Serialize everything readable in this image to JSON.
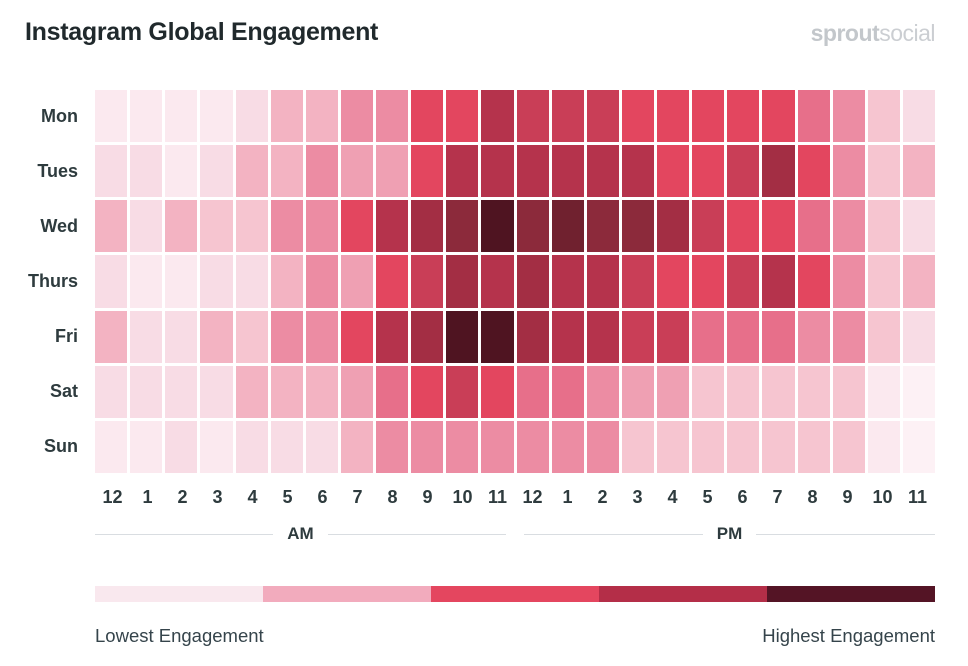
{
  "header": {
    "title": "Instagram Global Engagement",
    "logo_bold": "sprout",
    "logo_light": "social"
  },
  "chart_data": {
    "type": "heatmap",
    "title": "Instagram Global Engagement",
    "rows": [
      "Mon",
      "Tues",
      "Wed",
      "Thurs",
      "Fri",
      "Sat",
      "Sun"
    ],
    "columns": [
      "12",
      "1",
      "2",
      "3",
      "4",
      "5",
      "6",
      "7",
      "8",
      "9",
      "10",
      "11",
      "12",
      "1",
      "2",
      "3",
      "4",
      "5",
      "6",
      "7",
      "8",
      "9",
      "10",
      "11"
    ],
    "column_groups": [
      {
        "label": "AM",
        "span": 12
      },
      {
        "label": "PM",
        "span": 12
      }
    ],
    "value_meaning": "engagement level index into palette: 0 = lowest engagement, 14 = highest engagement",
    "palette": [
      "#fdf1f5",
      "#fbe9ef",
      "#f8dce5",
      "#f6c5d0",
      "#f3b3c2",
      "#efa0b3",
      "#ec8ca3",
      "#e76f8a",
      "#e3465f",
      "#c93e57",
      "#b5334c",
      "#a32e44",
      "#8c2a3b",
      "#70212f",
      "#4f1421"
    ],
    "cells": [
      [
        1,
        1,
        1,
        1,
        2,
        4,
        4,
        6,
        6,
        8,
        8,
        10,
        9,
        9,
        9,
        8,
        8,
        8,
        8,
        8,
        7,
        6,
        3,
        2
      ],
      [
        2,
        2,
        1,
        2,
        4,
        4,
        6,
        5,
        5,
        8,
        10,
        10,
        10,
        10,
        10,
        10,
        8,
        8,
        9,
        11,
        8,
        6,
        3,
        4
      ],
      [
        4,
        2,
        4,
        3,
        3,
        6,
        6,
        8,
        10,
        11,
        12,
        14,
        12,
        13,
        12,
        12,
        11,
        9,
        8,
        8,
        7,
        6,
        3,
        2
      ],
      [
        2,
        1,
        1,
        2,
        2,
        4,
        6,
        5,
        8,
        9,
        11,
        10,
        11,
        10,
        10,
        9,
        8,
        8,
        9,
        10,
        8,
        6,
        3,
        4
      ],
      [
        4,
        2,
        2,
        4,
        3,
        6,
        6,
        8,
        10,
        11,
        14,
        14,
        11,
        10,
        10,
        9,
        9,
        7,
        7,
        7,
        6,
        6,
        3,
        2
      ],
      [
        2,
        2,
        2,
        2,
        4,
        4,
        4,
        5,
        7,
        8,
        9,
        8,
        7,
        7,
        6,
        5,
        5,
        3,
        3,
        3,
        3,
        3,
        1,
        0
      ],
      [
        1,
        1,
        2,
        1,
        2,
        2,
        2,
        4,
        6,
        6,
        6,
        6,
        6,
        6,
        6,
        3,
        3,
        3,
        3,
        3,
        3,
        3,
        1,
        0
      ]
    ],
    "grid": false,
    "legend_position": "bottom"
  },
  "legend": {
    "colors": [
      "#f9e8ee",
      "#f2abbd",
      "#e4465f",
      "#b42e48",
      "#541425"
    ],
    "low_label": "Lowest Engagement",
    "high_label": "Highest Engagement"
  }
}
